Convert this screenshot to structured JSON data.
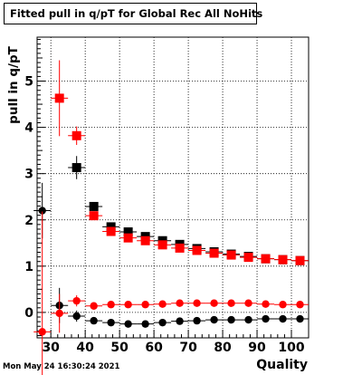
{
  "title": "Fitted pull in q/pT for Global Rec All NoHits",
  "timestamp": "Mon May 24 16:30:24 2021",
  "colors": {
    "series_red": "#ff0000",
    "series_black": "#000000",
    "grid": "#000000",
    "background": "#ffffff"
  },
  "chart_data": {
    "type": "scatter",
    "title": "Fitted pull in q/pT for Global Rec All NoHits",
    "xlabel": "Quality",
    "ylabel": "pull in q/pT",
    "xlim": [
      26,
      105
    ],
    "ylim": [
      -0.55,
      5.95
    ],
    "xticks": [
      30,
      40,
      50,
      60,
      70,
      80,
      90,
      100
    ],
    "yticks": [
      0,
      1,
      2,
      3,
      4,
      5
    ],
    "grid": true,
    "series": [
      {
        "marker": "square",
        "color": "#000000",
        "x": [
          27.5,
          32.5,
          37.5,
          42.5,
          47.5,
          52.5,
          57.5,
          62.5,
          67.5,
          72.5,
          77.5,
          82.5,
          87.5,
          92.5,
          97.5,
          102.5
        ],
        "y": [
          null,
          null,
          3.13,
          2.29,
          1.85,
          1.74,
          1.64,
          1.55,
          1.47,
          1.38,
          1.31,
          1.26,
          1.21,
          1.16,
          1.14,
          1.12
        ],
        "yerr": [
          null,
          null,
          0.25,
          0.06,
          0.05,
          0.04,
          0.04,
          0.03,
          0.03,
          0.03,
          0.03,
          0.03,
          0.02,
          0.02,
          0.02,
          0.02
        ]
      },
      {
        "marker": "square",
        "color": "#ff0000",
        "x": [
          27.5,
          32.5,
          37.5,
          42.5,
          47.5,
          52.5,
          57.5,
          62.5,
          67.5,
          72.5,
          77.5,
          82.5,
          87.5,
          92.5,
          97.5,
          102.5
        ],
        "y": [
          null,
          4.63,
          3.82,
          2.09,
          1.75,
          1.61,
          1.55,
          1.46,
          1.39,
          1.34,
          1.28,
          1.24,
          1.19,
          1.16,
          1.14,
          1.12
        ],
        "yerr": [
          null,
          0.82,
          0.2,
          0.07,
          0.05,
          0.04,
          0.04,
          0.03,
          0.03,
          0.03,
          0.03,
          0.03,
          0.02,
          0.02,
          0.02,
          0.02
        ]
      },
      {
        "marker": "circle",
        "color": "#000000",
        "x": [
          27.5,
          32.5,
          37.5,
          42.5,
          47.5,
          52.5,
          57.5,
          62.5,
          67.5,
          72.5,
          77.5,
          82.5,
          87.5,
          92.5,
          97.5,
          102.5
        ],
        "y": [
          2.2,
          0.15,
          -0.08,
          -0.18,
          -0.22,
          -0.25,
          -0.25,
          -0.22,
          -0.19,
          -0.18,
          -0.16,
          -0.16,
          -0.16,
          -0.14,
          -0.14,
          -0.14
        ],
        "yerr": [
          0.6,
          0.38,
          0.12,
          0.04,
          0.03,
          0.03,
          0.03,
          0.03,
          0.02,
          0.02,
          0.02,
          0.02,
          0.02,
          0.02,
          0.02,
          0.02
        ]
      },
      {
        "marker": "circle",
        "color": "#ff0000",
        "x": [
          27.5,
          32.5,
          37.5,
          42.5,
          47.5,
          52.5,
          57.5,
          62.5,
          67.5,
          72.5,
          77.5,
          82.5,
          87.5,
          92.5,
          97.5,
          102.5
        ],
        "y": [
          -0.42,
          -0.02,
          0.25,
          0.14,
          0.17,
          0.17,
          0.17,
          0.18,
          0.2,
          0.2,
          0.2,
          0.2,
          0.2,
          0.18,
          0.17,
          0.17
        ],
        "yerr": [
          2.6,
          0.42,
          0.12,
          0.04,
          0.03,
          0.03,
          0.03,
          0.03,
          0.02,
          0.02,
          0.02,
          0.02,
          0.02,
          0.02,
          0.02,
          0.02
        ]
      }
    ]
  }
}
